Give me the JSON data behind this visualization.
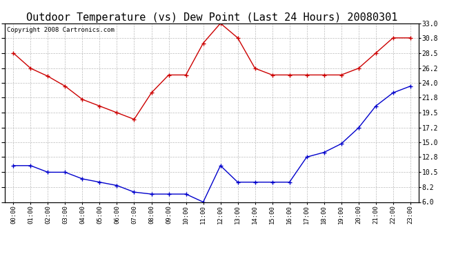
{
  "title": "Outdoor Temperature (vs) Dew Point (Last 24 Hours) 20080301",
  "copyright": "Copyright 2008 Cartronics.com",
  "x_labels": [
    "00:00",
    "01:00",
    "02:00",
    "03:00",
    "04:00",
    "05:00",
    "06:00",
    "07:00",
    "08:00",
    "09:00",
    "10:00",
    "11:00",
    "12:00",
    "13:00",
    "14:00",
    "15:00",
    "16:00",
    "17:00",
    "18:00",
    "19:00",
    "20:00",
    "21:00",
    "22:00",
    "23:00"
  ],
  "temp_data": [
    28.5,
    26.2,
    25.0,
    23.5,
    21.5,
    20.5,
    19.5,
    18.5,
    22.5,
    25.2,
    25.2,
    30.0,
    33.0,
    30.8,
    26.2,
    25.2,
    25.2,
    25.2,
    25.2,
    25.2,
    26.2,
    28.5,
    30.8,
    30.8
  ],
  "dew_data": [
    11.5,
    11.5,
    10.5,
    10.5,
    9.5,
    9.0,
    8.5,
    7.5,
    7.2,
    7.2,
    7.2,
    6.0,
    11.5,
    9.0,
    9.0,
    9.0,
    9.0,
    12.8,
    13.5,
    14.8,
    17.2,
    20.5,
    22.5,
    23.5
  ],
  "temp_color": "#cc0000",
  "dew_color": "#0000cc",
  "bg_color": "#ffffff",
  "plot_bg_color": "#ffffff",
  "grid_color": "#bbbbbb",
  "ylim": [
    6.0,
    33.0
  ],
  "yticks": [
    6.0,
    8.2,
    10.5,
    12.8,
    15.0,
    17.2,
    19.5,
    21.8,
    24.0,
    26.2,
    28.5,
    30.8,
    33.0
  ],
  "title_fontsize": 11,
  "copyright_fontsize": 6.5
}
